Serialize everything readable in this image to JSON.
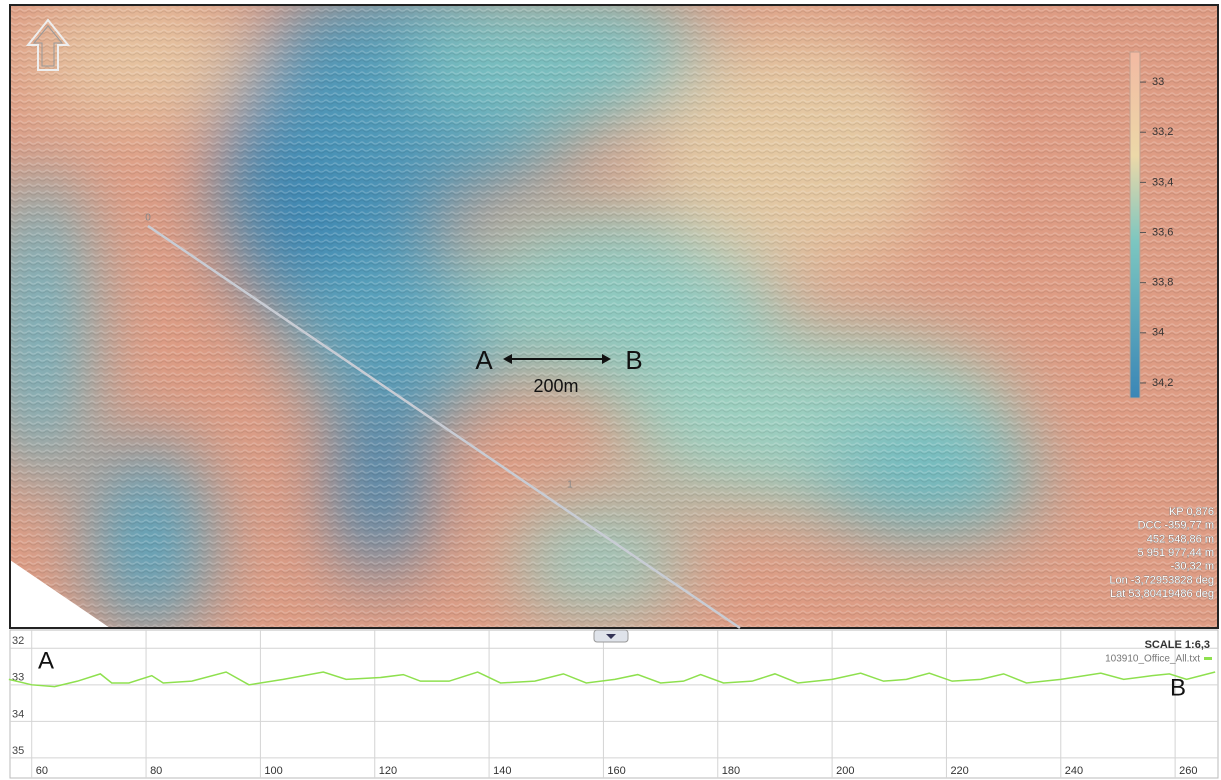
{
  "map": {
    "markers": [
      "0",
      "1"
    ],
    "annotation": {
      "a": "A",
      "b": "B",
      "distance": "200m"
    },
    "colorbar": {
      "range": [
        32.88,
        34.26
      ],
      "ticks": [
        33,
        {
          "value": 33.2,
          "label": "33,2"
        },
        {
          "value": 33.4,
          "label": "33,4"
        },
        {
          "value": 33.6,
          "label": "33,6"
        },
        {
          "value": 33.8,
          "label": "33,8"
        },
        34,
        {
          "value": 34.2,
          "label": "34,2"
        }
      ]
    },
    "readout": [
      "KP 0,876",
      "DCC -359,77 m",
      "452 548,86 m",
      "5 951 977,44 m",
      "-30,32 m",
      "Lon -3,72953828 deg",
      "Lat 53,80419486 deg"
    ]
  },
  "chart_data": {
    "type": "line",
    "scale_label": "SCALE 1:6,3",
    "annotations": [
      "A",
      "B"
    ],
    "x": [
      56,
      60,
      64,
      68,
      72,
      74,
      77,
      81,
      83,
      88,
      94,
      98,
      104,
      111,
      115,
      121,
      125,
      128,
      133,
      138,
      142,
      148,
      153,
      157,
      162,
      166,
      170,
      174,
      177,
      181,
      186,
      190,
      194,
      200,
      205,
      209,
      213,
      217,
      221,
      226,
      230,
      234,
      240,
      247,
      251,
      256,
      259,
      262,
      267
    ],
    "series": [
      {
        "name": "103910_Office_All.txt",
        "color": "#8ee04e",
        "values": [
          32.85,
          33.0,
          33.05,
          32.9,
          32.7,
          32.95,
          32.95,
          32.75,
          32.95,
          32.9,
          32.65,
          33.0,
          32.85,
          32.65,
          32.85,
          32.8,
          32.72,
          32.9,
          32.9,
          32.65,
          32.95,
          32.9,
          32.7,
          32.95,
          32.85,
          32.72,
          32.95,
          32.9,
          32.72,
          32.95,
          32.9,
          32.7,
          32.95,
          32.85,
          32.68,
          32.9,
          32.85,
          32.68,
          32.9,
          32.85,
          32.7,
          32.95,
          32.85,
          32.68,
          32.85,
          32.75,
          32.7,
          32.85,
          32.65
        ]
      }
    ],
    "xlim": [
      56.2,
      267.5
    ],
    "xticks": [
      60,
      80,
      100,
      120,
      140,
      160,
      180,
      200,
      220,
      240,
      260
    ],
    "ylim": [
      31.5,
      35.55
    ],
    "yticks": [
      32,
      33,
      34,
      35
    ],
    "grid": true
  }
}
